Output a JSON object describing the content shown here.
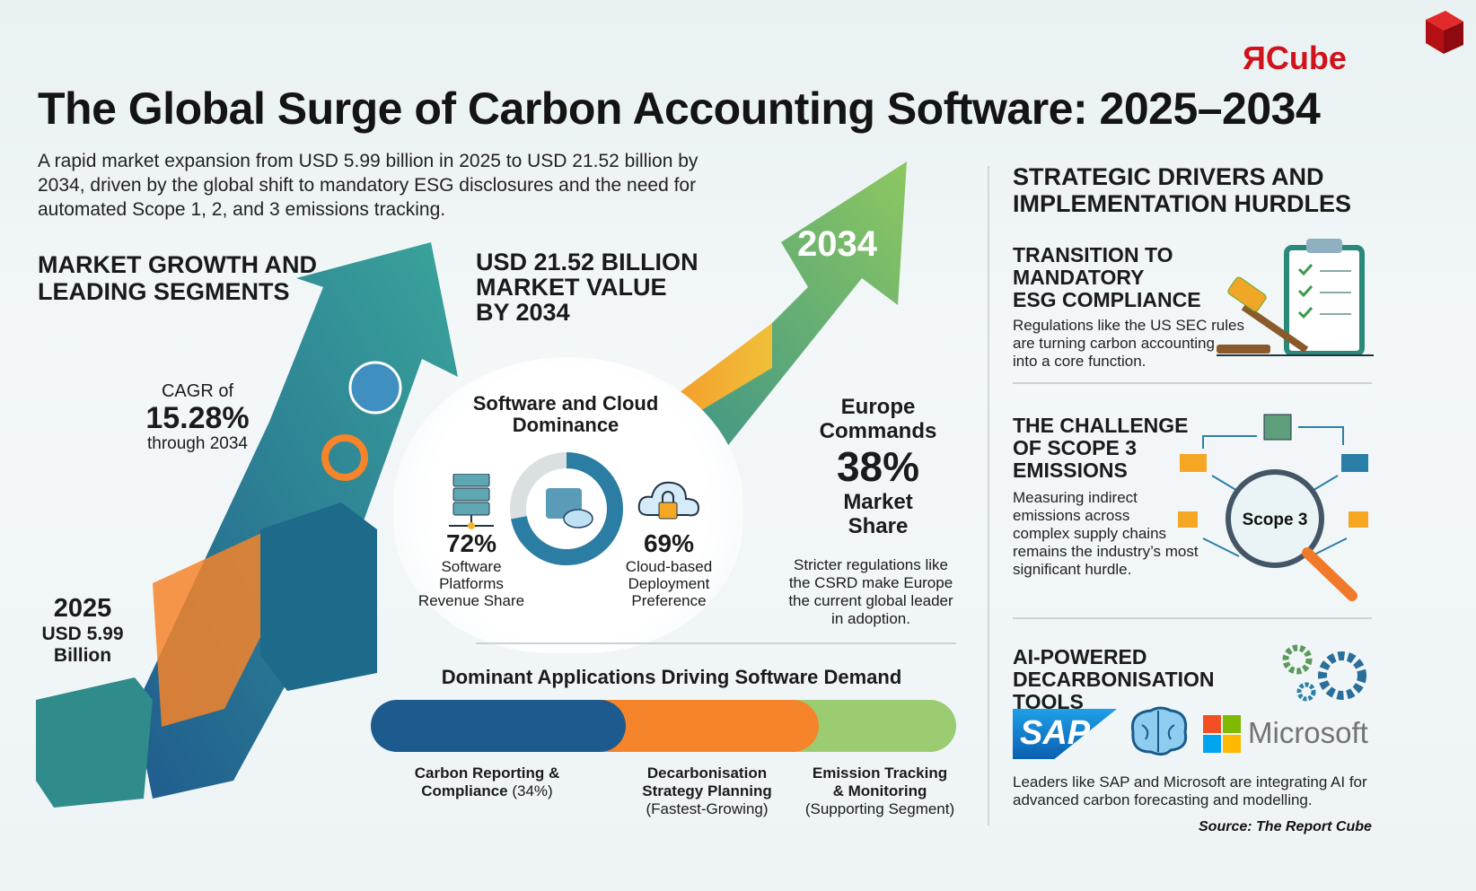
{
  "logo": {
    "text": "ЯCube",
    "color": "#d0121b"
  },
  "title": "The Global Surge of Carbon Accounting Software: 2025–2034",
  "subtitle": "A rapid market expansion from USD 5.99 billion in 2025 to USD 21.52 billion by 2034, driven by the global shift to mandatory ESG disclosures and the need for automated Scope 1, 2, and 3 emissions tracking.",
  "left": {
    "heading_l1": "MARKET GROWTH AND",
    "heading_l2": "LEADING SEGMENTS",
    "cagr_label": "CAGR of",
    "cagr_value": "15.28%",
    "cagr_suffix": "through 2034",
    "start_year": "2025",
    "start_value_l1": "USD 5.99",
    "start_value_l2": "Billion",
    "end_l1": "USD 21.52 BILLION",
    "end_l2": "MARKET VALUE",
    "end_l3": "BY 2034",
    "end_year": "2034"
  },
  "circle": {
    "title_l1": "Software and Cloud",
    "title_l2": "Dominance",
    "software_pct": "72%",
    "software_label_l1": "Software",
    "software_label_l2": "Platforms",
    "software_label_l3": "Revenue Share",
    "cloud_pct": "69%",
    "cloud_label_l1": "Cloud-based",
    "cloud_label_l2": "Deployment",
    "cloud_label_l3": "Preference",
    "donut_share": 0.72
  },
  "europe": {
    "l1": "Europe",
    "l2": "Commands",
    "pct": "38%",
    "l3": "Market",
    "l4": "Share",
    "desc_l1": "Stricter regulations like",
    "desc_l2": "the CSRD make Europe",
    "desc_l3": "the current global leader",
    "desc_l4": "in adoption."
  },
  "applications": {
    "title": "Dominant Applications Driving Software Demand",
    "segments": [
      {
        "l1": "Carbon Reporting &",
        "l2": "Compliance",
        "note": "(34%)",
        "color": "#1d5b8f"
      },
      {
        "l1": "Decarbonisation",
        "l2": "Strategy Planning",
        "note": "(Fastest-Growing)",
        "color": "#f5842a"
      },
      {
        "l1": "Emission Tracking",
        "l2": "& Monitoring",
        "note": "(Supporting Segment)",
        "color": "#9ccc72"
      }
    ]
  },
  "right": {
    "heading_l1": "STRATEGIC DRIVERS AND",
    "heading_l2": "IMPLEMENTATION HURDLES",
    "items": [
      {
        "t1": "TRANSITION TO MANDATORY",
        "t2": "ESG COMPLIANCE",
        "d": [
          "Regulations like the US SEC rules",
          "are turning carbon accounting",
          "into a core function."
        ],
        "icon": "gavel-clipboard-icon"
      },
      {
        "t1": "THE CHALLENGE",
        "t2": "OF SCOPE 3",
        "t3": "EMISSIONS",
        "d": [
          "Measuring indirect",
          "emissions across",
          "complex supply chains",
          "remains the industry’s most",
          "significant hurdle."
        ],
        "badge": "Scope 3",
        "icon": "magnifier-supply-chain-icon"
      },
      {
        "t1": "AI-POWERED",
        "t2": "DECARBONISATION TOOLS",
        "d": [
          "Leaders like SAP and Microsoft are integrating AI for",
          "advanced carbon forecasting and modelling."
        ],
        "sap": "SAP",
        "microsoft": "Microsoft"
      }
    ]
  },
  "source": "Source: The Report Cube"
}
